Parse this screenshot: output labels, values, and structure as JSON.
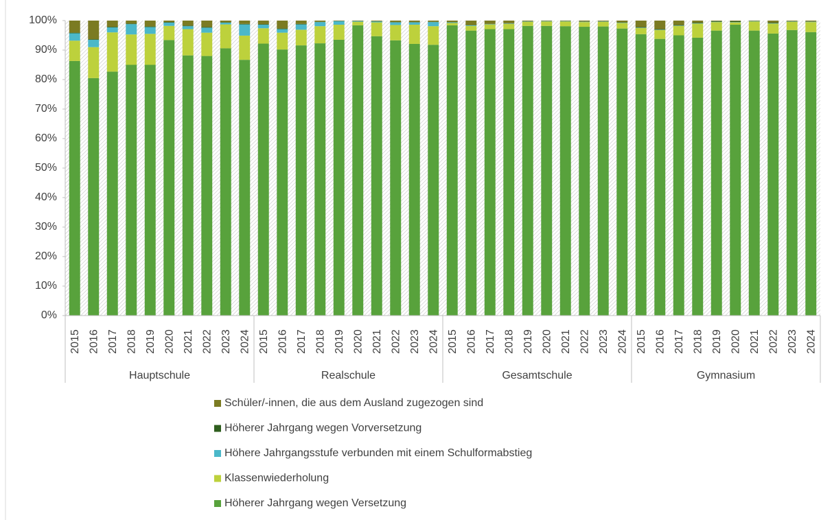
{
  "chart_data": {
    "type": "stacked_bar",
    "groups": [
      {
        "name": "Hauptschule",
        "categories": [
          "2015",
          "2016",
          "2017",
          "2018",
          "2019",
          "2020",
          "2021",
          "2022",
          "2023",
          "2024"
        ]
      },
      {
        "name": "Realschule",
        "categories": [
          "2015",
          "2016",
          "2017",
          "2018",
          "2019",
          "2020",
          "2021",
          "2022",
          "2023",
          "2024"
        ]
      },
      {
        "name": "Gesamtschule",
        "categories": [
          "2015",
          "2016",
          "2017",
          "2018",
          "2019",
          "2020",
          "2021",
          "2022",
          "2023",
          "2024"
        ]
      },
      {
        "name": "Gymnasium",
        "categories": [
          "2015",
          "2016",
          "2017",
          "2018",
          "2019",
          "2020",
          "2021",
          "2022",
          "2023",
          "2024"
        ]
      }
    ],
    "series": [
      {
        "name": "Höherer Jahrgang wegen Versetzung",
        "color": "#58a23c",
        "values": [
          86.3,
          80.5,
          82.7,
          85,
          85,
          93.4,
          88.2,
          88,
          90.6,
          86.7,
          92.2,
          90.2,
          91.6,
          92.3,
          93.5,
          98.4,
          94.7,
          93.3,
          92.1,
          91.8,
          98.4,
          96.6,
          97.1,
          97.1,
          98.2,
          98.2,
          98.1,
          97.9,
          98,
          97.3,
          95.4,
          93.8,
          95,
          94.2,
          96.6,
          98.6,
          96.6,
          95.6,
          96.8,
          96.1
        ]
      },
      {
        "name": "Klassenwiederholung",
        "color": "#bdd13c",
        "values": [
          6.9,
          10.5,
          13.3,
          10.3,
          10.5,
          4.8,
          8.9,
          7.9,
          8.1,
          8.2,
          5.2,
          5.7,
          5.3,
          5.8,
          5.1,
          1.2,
          4.7,
          5.2,
          6.5,
          6.3,
          0.8,
          1.6,
          1.6,
          1.8,
          1.4,
          1.5,
          1.6,
          1.6,
          1.6,
          1.9,
          2.1,
          3,
          3.2,
          4.8,
          2.9,
          0.8,
          3.1,
          3.4,
          2.8,
          3.4
        ]
      },
      {
        "name": "Höhere Jahrgangsstufe verbunden mit einem Schulformabstieg",
        "color": "#4bb8c9",
        "values": [
          2.5,
          2.5,
          1.7,
          3.5,
          2.3,
          1.1,
          1,
          1.7,
          0.6,
          3.8,
          1.2,
          1.2,
          1.8,
          1.4,
          1.2,
          0.2,
          0.3,
          0.9,
          0.8,
          1.4,
          0.2,
          0.2,
          0.1,
          0.1,
          0.1,
          0.1,
          0.1,
          0.1,
          0.1,
          0.1,
          0.1,
          0.1,
          0.1,
          0.1,
          0.1,
          0.1,
          0.1,
          0.1,
          0.1,
          0.1
        ]
      },
      {
        "name": "Höherer Jahrgang wegen Vorversetzung",
        "color": "#2e5e1e",
        "values": [
          0.2,
          0.2,
          0.2,
          0.2,
          0.2,
          0.2,
          0.2,
          0.2,
          0.1,
          0.2,
          0.2,
          0.2,
          0.2,
          0.1,
          0.1,
          0.1,
          0.1,
          0.1,
          0.1,
          0.1,
          0.1,
          0.1,
          0.1,
          0.1,
          0.1,
          0.1,
          0.1,
          0.1,
          0.1,
          0.1,
          0.2,
          0.2,
          0.2,
          0.2,
          0.2,
          0.3,
          0.1,
          0.2,
          0.1,
          0.1
        ]
      },
      {
        "name": "Schüler/-innen, die aus dem Ausland zugezogen sind",
        "color": "#7b7b22",
        "values": [
          4.1,
          6.3,
          2.1,
          1,
          2,
          0.5,
          1.7,
          2.2,
          0.6,
          1.1,
          1.2,
          2.7,
          1.1,
          0.4,
          0.1,
          0.1,
          0.2,
          0.5,
          0.5,
          0.4,
          0.5,
          1.5,
          1.1,
          0.9,
          0.2,
          0.1,
          0.1,
          0.3,
          0.2,
          0.6,
          2.2,
          2.9,
          1.5,
          0.7,
          0.2,
          0.2,
          0.1,
          0.7,
          0.2,
          0.3
        ]
      }
    ],
    "ylim": [
      0,
      100
    ],
    "yticks": [
      {
        "value": 0,
        "label": "0%"
      },
      {
        "value": 10,
        "label": "10%"
      },
      {
        "value": 20,
        "label": "20%"
      },
      {
        "value": 30,
        "label": "30%"
      },
      {
        "value": 40,
        "label": "40%"
      },
      {
        "value": 50,
        "label": "50%"
      },
      {
        "value": 60,
        "label": "60%"
      },
      {
        "value": 70,
        "label": "70%"
      },
      {
        "value": 80,
        "label": "80%"
      },
      {
        "value": 90,
        "label": "90%"
      },
      {
        "value": 100,
        "label": "100%"
      }
    ],
    "legend_position": "bottom"
  }
}
